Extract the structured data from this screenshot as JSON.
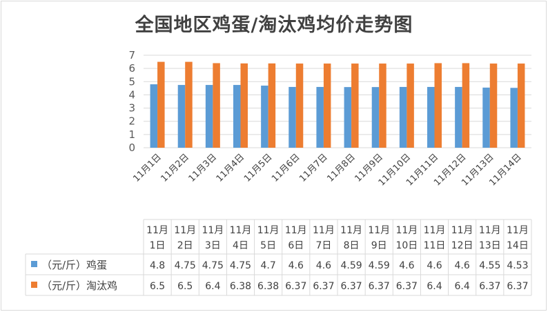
{
  "chart_data": {
    "type": "bar",
    "title": "全国地区鸡蛋/淘汰鸡均价走势图",
    "categories": [
      "11月1日",
      "11月2日",
      "11月3日",
      "11月4日",
      "11月5日",
      "11月6日",
      "11月7日",
      "11月8日",
      "11月9日",
      "11月10日",
      "11月11日",
      "11月12日",
      "11月13日",
      "11月14日"
    ],
    "table_categories": [
      [
        "11月",
        "1日"
      ],
      [
        "11月",
        "2日"
      ],
      [
        "11月",
        "3日"
      ],
      [
        "11月",
        "4日"
      ],
      [
        "11月",
        "5日"
      ],
      [
        "11月",
        "6日"
      ],
      [
        "11月",
        "7日"
      ],
      [
        "11月",
        "8日"
      ],
      [
        "11月",
        "9日"
      ],
      [
        "11月",
        "10日"
      ],
      [
        "11月",
        "11日"
      ],
      [
        "11月",
        "12日"
      ],
      [
        "11月",
        "13日"
      ],
      [
        "11月",
        "14日"
      ]
    ],
    "series": [
      {
        "name": "（元/斤）鸡蛋",
        "color": "#5b9bd5",
        "values": [
          4.8,
          4.75,
          4.75,
          4.75,
          4.7,
          4.6,
          4.6,
          4.59,
          4.59,
          4.6,
          4.6,
          4.6,
          4.55,
          4.53
        ]
      },
      {
        "name": "（元/斤）淘汰鸡",
        "color": "#ed7d31",
        "values": [
          6.5,
          6.5,
          6.4,
          6.38,
          6.38,
          6.37,
          6.37,
          6.37,
          6.37,
          6.37,
          6.4,
          6.4,
          6.37,
          6.37
        ]
      }
    ],
    "yticks": [
      "0",
      "1",
      "2",
      "3",
      "4",
      "5",
      "6",
      "7"
    ],
    "ylim": [
      0,
      7
    ],
    "grid": true,
    "legend": "data-table"
  }
}
